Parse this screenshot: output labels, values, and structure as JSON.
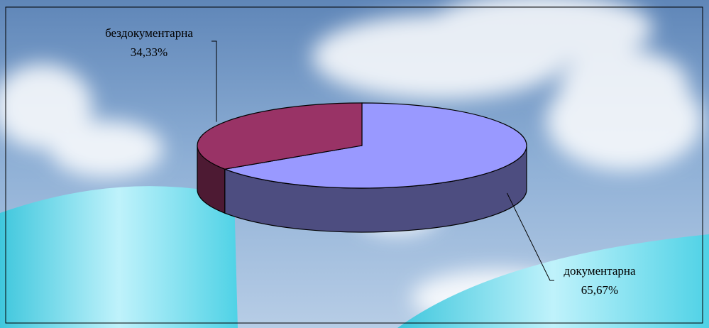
{
  "chart_data": {
    "type": "pie",
    "categories": [
      "документарна",
      "бездокументарна"
    ],
    "values": [
      65.67,
      34.33
    ],
    "value_labels": [
      "65,67%",
      "34,33%"
    ],
    "colors": [
      "#9999ff",
      "#993366"
    ],
    "start_angle": 90,
    "direction": "clockwise",
    "3d": true
  }
}
